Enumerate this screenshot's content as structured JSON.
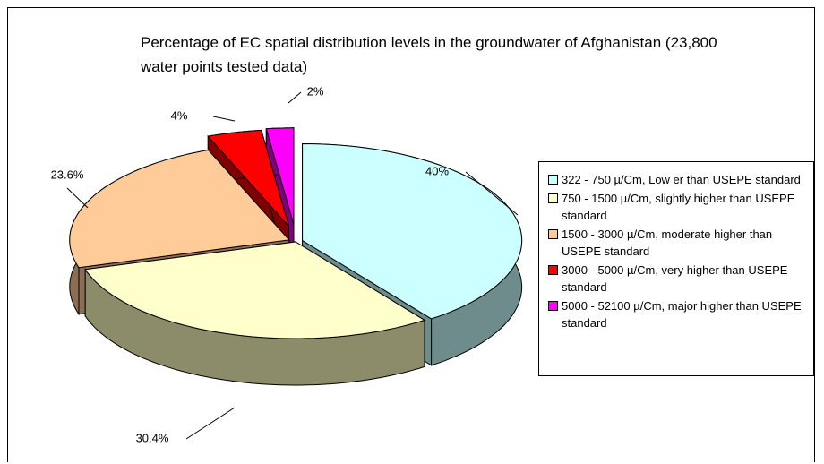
{
  "chart_data": {
    "type": "pie",
    "title": "Percentage of EC spatial distribution levels in  the groundwater  of Afghanistan (23,800  water points tested data)",
    "categories": [
      "322 - 750 µ/Cm,  Low er than USEPE standard",
      "750 - 1500 µ/Cm, slightly higher than USEPE standard",
      "1500 - 3000  µ/Cm, moderate higher than USEPE standard",
      "3000 - 5000 µ/Cm, very higher than USEPE standard",
      "5000 - 52100 µ/Cm, major higher than USEPE standard"
    ],
    "values": [
      40,
      30.4,
      23.6,
      4,
      2
    ],
    "value_labels": [
      "40%",
      "30.4%",
      "23.6%",
      "4%",
      "2%"
    ],
    "colors": [
      "#ccffff",
      "#ffffcc",
      "#ffcc99",
      "#ff0000",
      "#ff00ff"
    ],
    "side_colors": [
      "#6e8c8c",
      "#8c8c6a",
      "#8c6e55",
      "#800000",
      "#800080"
    ]
  }
}
